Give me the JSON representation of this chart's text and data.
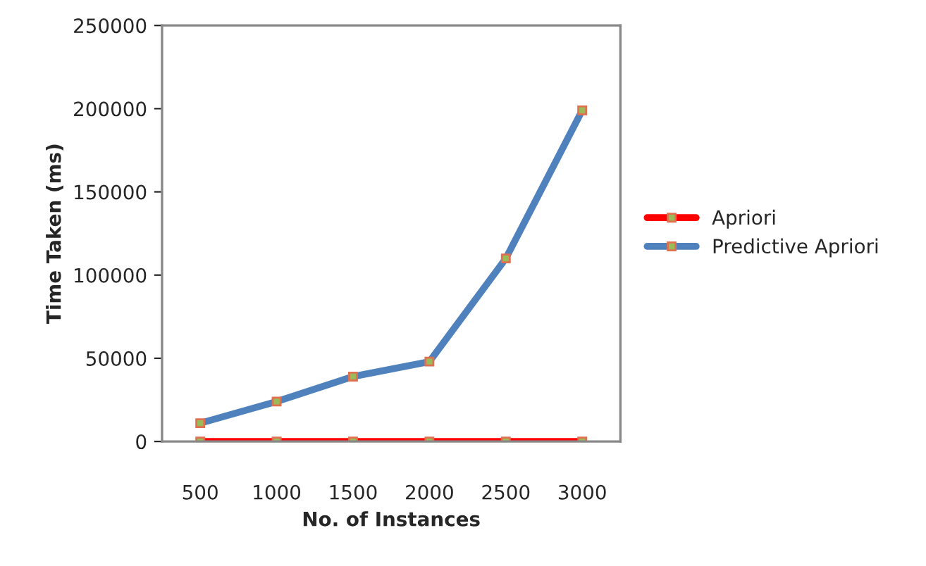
{
  "chart_data": {
    "type": "line",
    "xlabel": "No. of Instances",
    "ylabel": "Time Taken (ms)",
    "categories": [
      "500",
      "1000",
      "1500",
      "2000",
      "2500",
      "3000"
    ],
    "series": [
      {
        "name": "Apriori",
        "color": "#ff0000",
        "values": [
          0,
          0,
          0,
          0,
          0,
          0
        ]
      },
      {
        "name": "Predictive Apriori",
        "color": "#4f81bd",
        "values": [
          11000,
          24000,
          39000,
          48000,
          110000,
          199000
        ]
      }
    ],
    "ylim": [
      0,
      250000
    ],
    "yticks": [
      0,
      50000,
      100000,
      150000,
      200000,
      250000
    ],
    "grid": false,
    "legend": "right",
    "marker": "square",
    "line_style": "solid"
  }
}
